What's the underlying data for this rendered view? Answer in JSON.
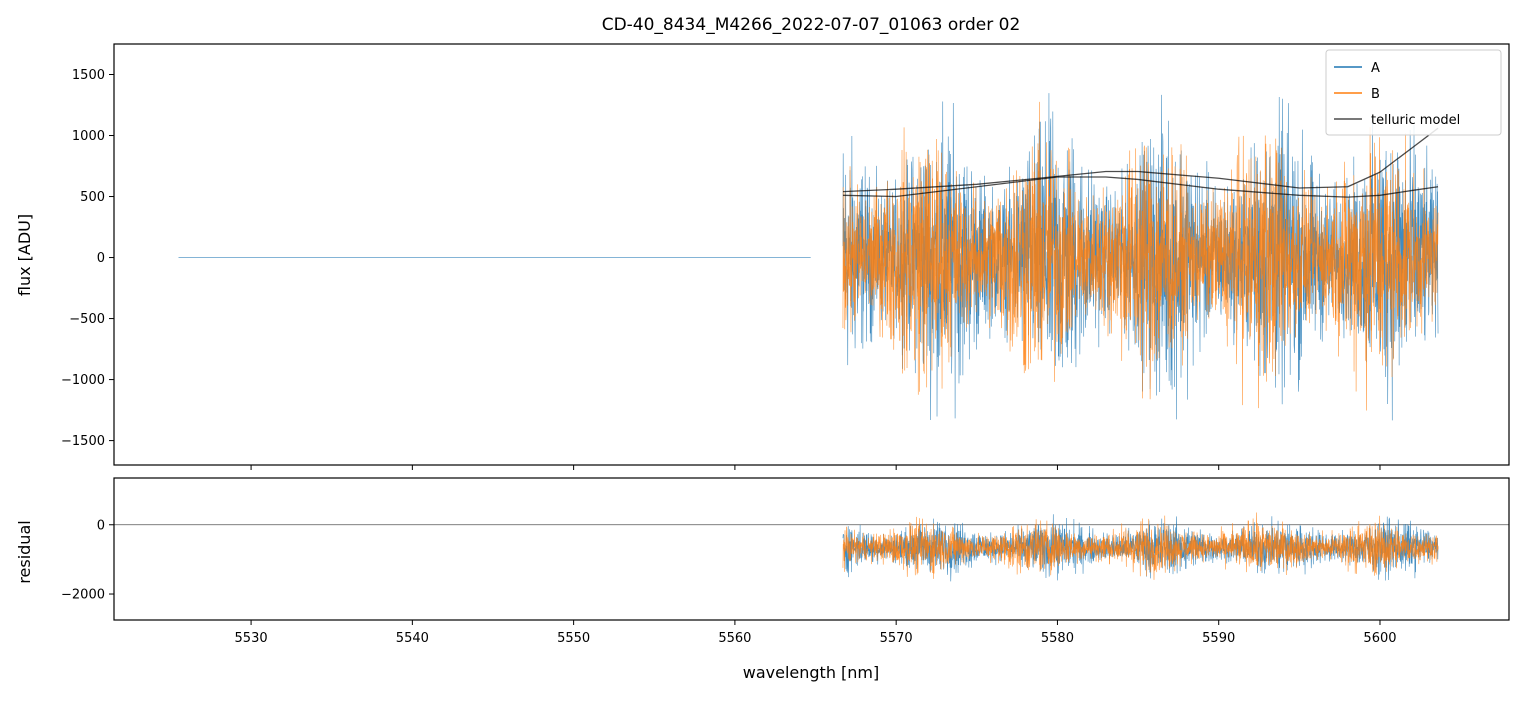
{
  "chart_data": {
    "type": "line",
    "title": "CD-40_8434_M4266_2022-07-07_01063  order 02",
    "xlabel": "wavelength [nm]",
    "xlim": [
      5521.5,
      5608.0
    ],
    "xticks": [
      5530,
      5540,
      5550,
      5560,
      5570,
      5580,
      5590,
      5600
    ],
    "legend": {
      "placement": "top-right",
      "entries": [
        {
          "label": "A",
          "color": "#1f77b4"
        },
        {
          "label": "B",
          "color": "#ff7f0e"
        },
        {
          "label": "telluric model",
          "color": "#000000"
        }
      ]
    },
    "panels": [
      {
        "name": "flux",
        "ylabel": "flux [ADU]",
        "ylim": [
          -1700,
          1750
        ],
        "yticks": [
          -1500,
          -1000,
          -500,
          0,
          500,
          1000,
          1500
        ],
        "ytick_labels": [
          "−1500",
          "−1000",
          "−500",
          "0",
          "500",
          "1000",
          "1500"
        ],
        "series": [
          {
            "name": "A",
            "color": "#1f77b4",
            "segments": [
              {
                "x_range": [
                  5525.5,
                  5564.7
                ],
                "constant": 0
              },
              {
                "x_range": [
                  5566.7,
                  5603.6
                ],
                "center": 0,
                "spread": 700,
                "clip": [
                  -1700,
                  1750
                ]
              }
            ]
          },
          {
            "name": "B",
            "color": "#ff7f0e",
            "segments": [
              {
                "x_range": [
                  5566.7,
                  5603.6
                ],
                "center": 0,
                "spread": 650,
                "clip": [
                  -1700,
                  1750
                ]
              }
            ]
          },
          {
            "name": "telluric model",
            "color": "#000000",
            "curves": [
              {
                "x": [
                  5566.7,
                  5570,
                  5575,
                  5580,
                  5583,
                  5585,
                  5590,
                  5595,
                  5598,
                  5600,
                  5602,
                  5603.6
                ],
                "y": [
                  540,
                  560,
                  600,
                  665,
                  705,
                  705,
                  650,
                  570,
                  580,
                  700,
                  900,
                  1060
                ]
              },
              {
                "x": [
                  5566.7,
                  5570,
                  5575,
                  5580,
                  5583,
                  5585,
                  5590,
                  5595,
                  5598,
                  5600,
                  5602,
                  5603.6
                ],
                "y": [
                  510,
                  500,
                  580,
                  660,
                  660,
                  640,
                  560,
                  510,
                  495,
                  510,
                  550,
                  580
                ]
              }
            ]
          }
        ]
      },
      {
        "name": "residual",
        "ylabel": "residual",
        "ylim": [
          -2750,
          1350
        ],
        "yticks": [
          -2000,
          0
        ],
        "ytick_labels": [
          "−2000",
          "0"
        ],
        "reference_line": 0,
        "series": [
          {
            "name": "A",
            "color": "#1f77b4",
            "segments": [
              {
                "x_range": [
                  5566.7,
                  5603.6
                ],
                "center": -650,
                "spread": 500,
                "clip": [
                  -2750,
                  1350
                ]
              }
            ]
          },
          {
            "name": "B",
            "color": "#ff7f0e",
            "segments": [
              {
                "x_range": [
                  5566.7,
                  5603.6
                ],
                "center": -650,
                "spread": 480,
                "clip": [
                  -2750,
                  1350
                ]
              }
            ]
          }
        ]
      }
    ]
  }
}
